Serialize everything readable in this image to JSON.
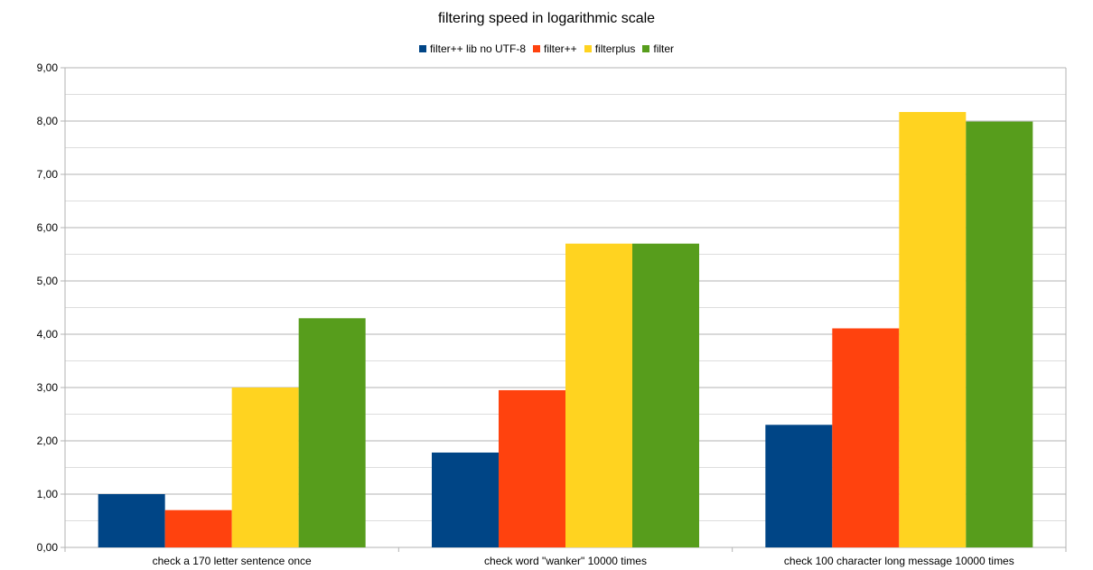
{
  "chart_data": {
    "type": "bar",
    "title": "filtering speed in logarithmic scale",
    "categories": [
      "check a 170 letter sentence once",
      "check word \"wanker\" 10000 times",
      "check 100 character long message 10000 times"
    ],
    "series": [
      {
        "name": "filter++ lib no UTF-8",
        "color": "#004586",
        "values": [
          1.0,
          1.78,
          2.3
        ]
      },
      {
        "name": "filter++",
        "color": "#ff420e",
        "values": [
          0.7,
          2.95,
          4.11
        ]
      },
      {
        "name": "filterplus",
        "color": "#ffd320",
        "values": [
          3.0,
          5.7,
          8.17
        ]
      },
      {
        "name": "filter",
        "color": "#579d1c",
        "values": [
          4.3,
          5.7,
          7.99
        ]
      }
    ],
    "ylim": [
      0,
      9
    ],
    "yticks": [
      "0,00",
      "1,00",
      "2,00",
      "3,00",
      "4,00",
      "5,00",
      "6,00",
      "7,00",
      "8,00",
      "9,00"
    ],
    "grid": true,
    "legend_position": "top-center"
  }
}
